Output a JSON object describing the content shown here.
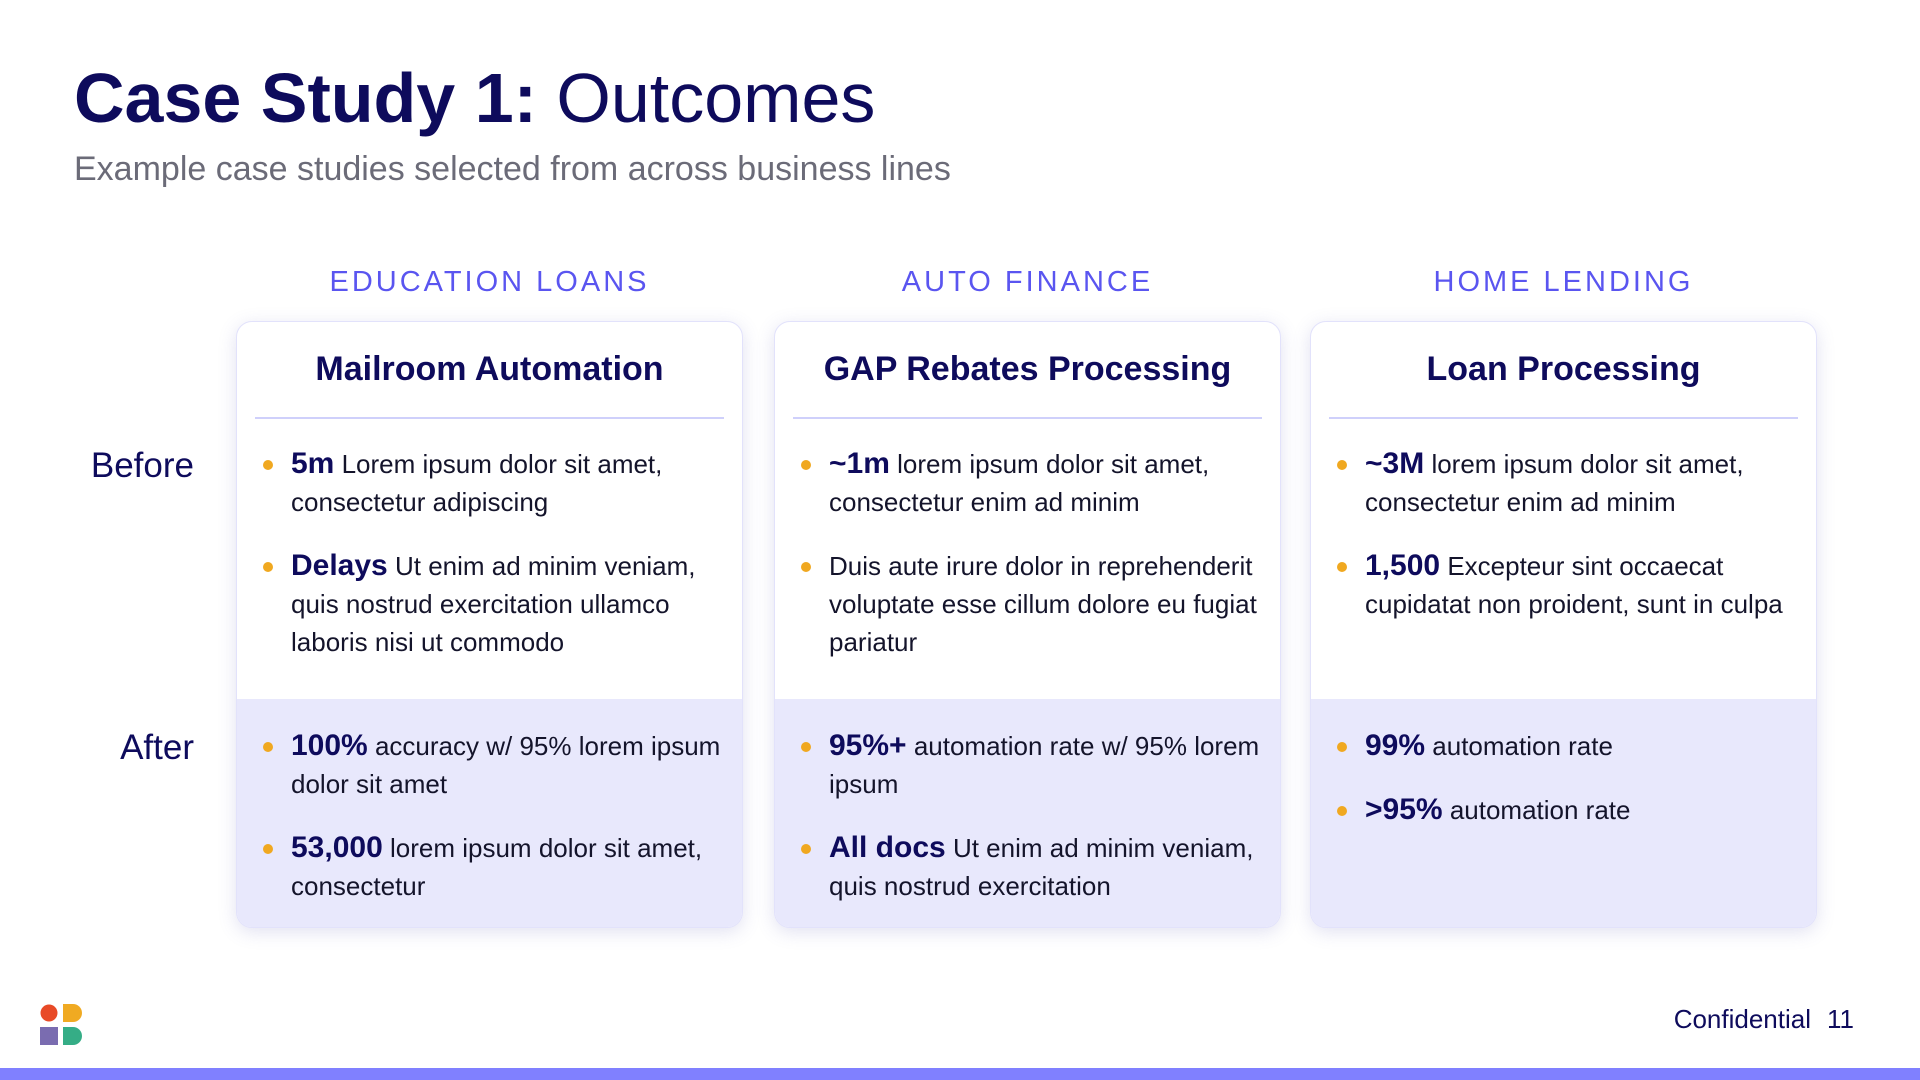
{
  "header": {
    "title_bold": "Case Study 1:",
    "title_regular": "Outcomes",
    "subtitle": "Example case studies selected from across business lines"
  },
  "row_labels": {
    "before": "Before",
    "after": "After"
  },
  "columns": [
    {
      "category": "EDUCATION LOANS",
      "title": "Mailroom Automation",
      "before": [
        {
          "key": "5m",
          "text": "Lorem ipsum dolor sit amet, consectetur adipiscing"
        },
        {
          "key": "Delays",
          "text": "Ut enim ad minim veniam, quis nostrud exercitation ullamco laboris nisi ut commodo"
        }
      ],
      "after": [
        {
          "key": "100%",
          "text": "accuracy w/ 95% lorem ipsum dolor sit amet"
        },
        {
          "key": "53,000",
          "text": "lorem ipsum dolor sit amet, consectetur"
        }
      ]
    },
    {
      "category": "AUTO FINANCE",
      "title": "GAP Rebates Processing",
      "before": [
        {
          "key": "~1m",
          "text": "lorem ipsum dolor sit amet, consectetur enim ad minim"
        },
        {
          "key": "",
          "text": "Duis aute irure dolor in reprehenderit voluptate esse cillum dolore eu fugiat pariatur"
        }
      ],
      "after": [
        {
          "key": "95%+",
          "text": "automation rate w/ 95% lorem ipsum"
        },
        {
          "key": "All docs",
          "text": "Ut enim ad minim veniam, quis nostrud exercitation"
        }
      ]
    },
    {
      "category": "HOME LENDING",
      "title": "Loan Processing",
      "before": [
        {
          "key": "~3M",
          "text": "lorem ipsum dolor sit amet, consectetur enim ad minim"
        },
        {
          "key": "1,500",
          "text": "Excepteur sint occaecat cupidatat non proident, sunt in culpa"
        }
      ],
      "after": [
        {
          "key": "99%",
          "text": "automation rate"
        },
        {
          "key": ">95%",
          "text": "automation rate"
        }
      ]
    }
  ],
  "footer": {
    "label": "Confidential",
    "page": "11"
  },
  "colors": {
    "navy": "#0e0b5c",
    "accent": "#5a55f0",
    "bullet": "#f0a820",
    "after_bg": "#e8e8fc",
    "bar": "#8080ff"
  }
}
